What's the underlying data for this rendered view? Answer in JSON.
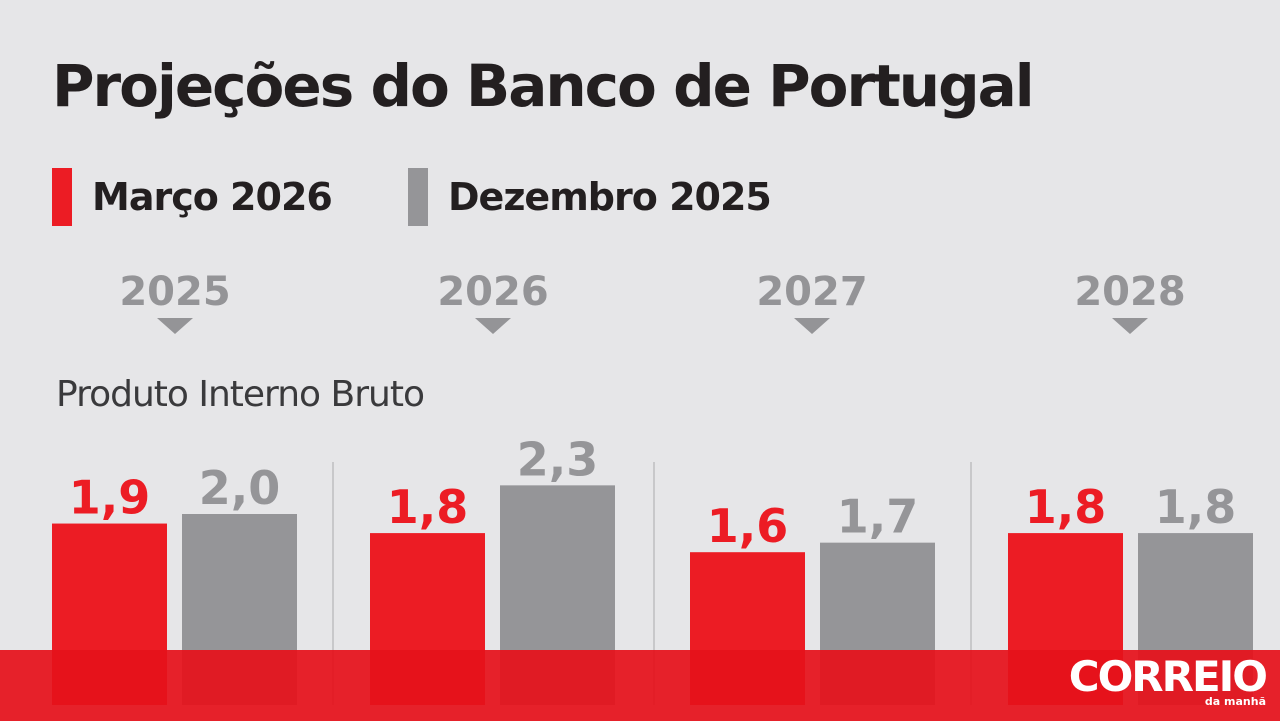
{
  "title": "Projeções do Banco de Portugal",
  "legend": [
    {
      "label": "Março 2026",
      "color": "#ec1c24"
    },
    {
      "label": "Dezembro 2025",
      "color": "#959598"
    }
  ],
  "metric_label": "Produto Interno Bruto",
  "brand": {
    "name": "CORREIO",
    "sub": "da manhã"
  },
  "colors": {
    "march": "#ec1c24",
    "december": "#959598",
    "footer": "#e5111b",
    "background": "#e6e6e8"
  },
  "chart_data": {
    "type": "bar",
    "title": "Projeções do Banco de Portugal",
    "categories": [
      "2025",
      "2026",
      "2027",
      "2028"
    ],
    "series": [
      {
        "name": "Março 2026",
        "values": [
          1.9,
          1.8,
          1.6,
          1.8
        ],
        "labels": [
          "1,9",
          "1,8",
          "1,6",
          "1,8"
        ],
        "color": "#ec1c24"
      },
      {
        "name": "Dezembro 2025",
        "values": [
          2.0,
          2.3,
          1.7,
          1.8
        ],
        "labels": [
          "2,0",
          "2,3",
          "1,7",
          "1,8"
        ],
        "color": "#959598"
      }
    ],
    "xlabel": "",
    "ylabel": "",
    "grid": false,
    "legend_position": "top-left"
  }
}
